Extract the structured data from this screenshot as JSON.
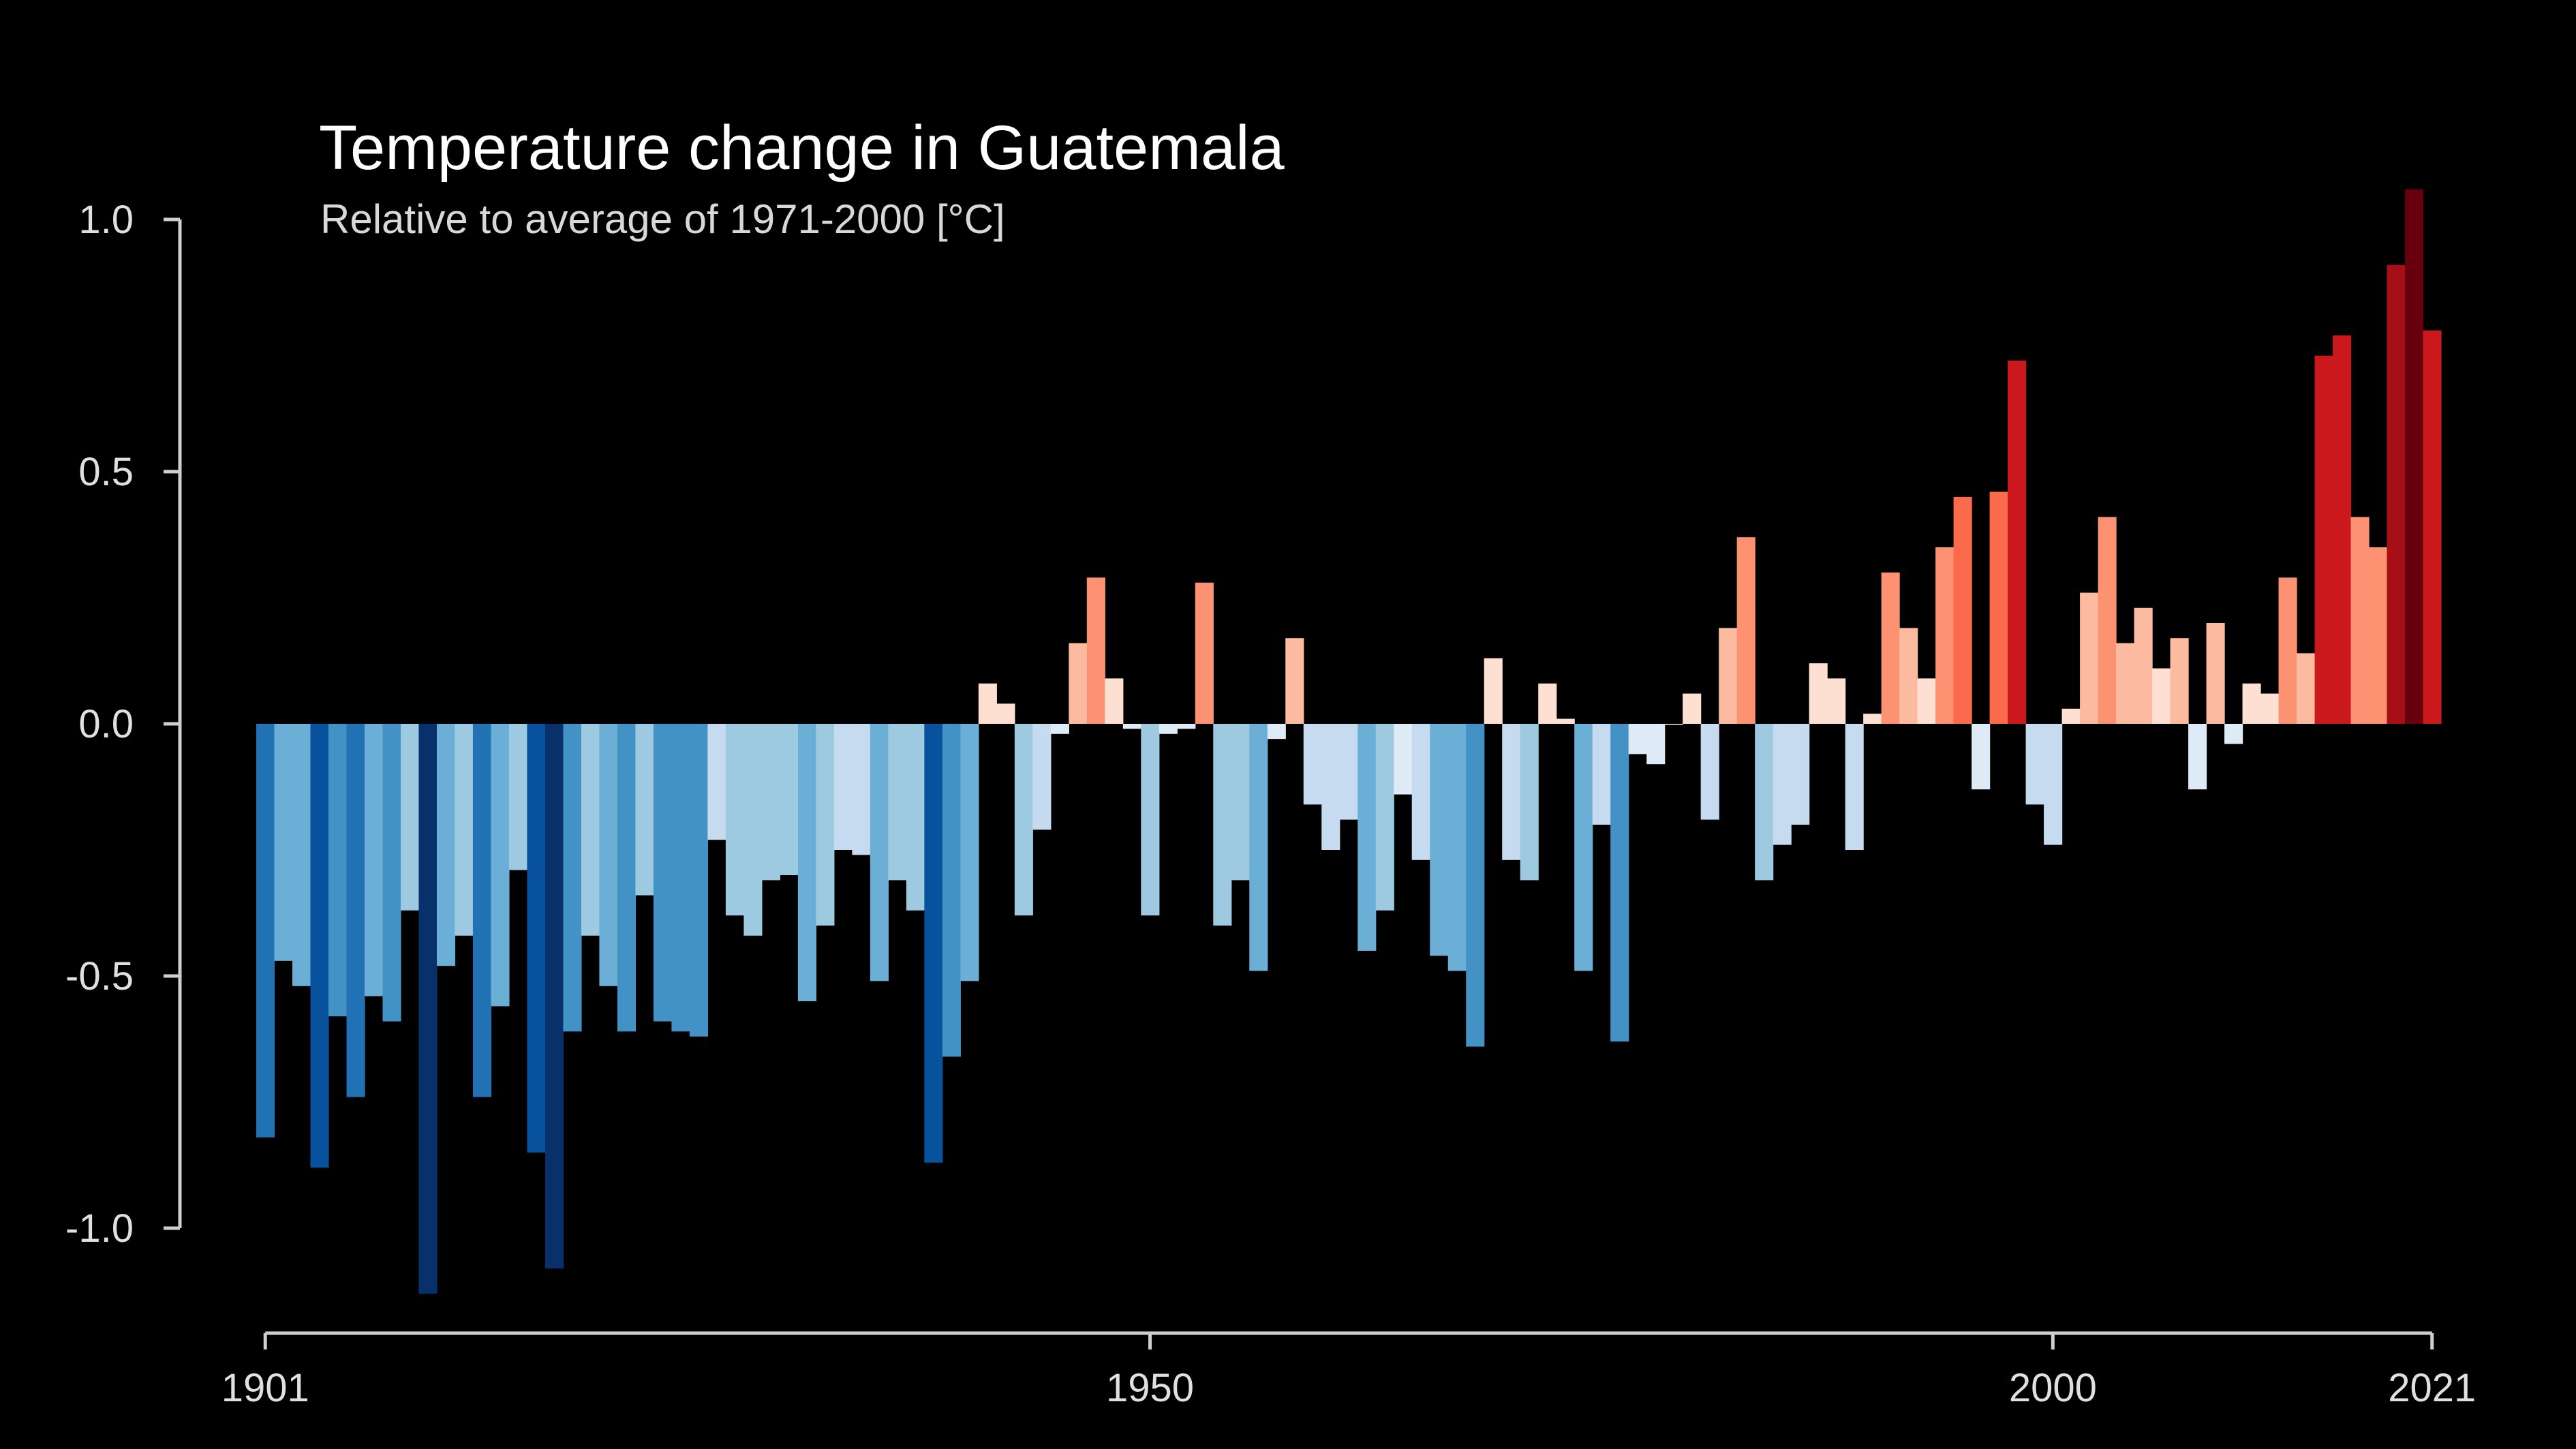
{
  "chart_data": {
    "type": "bar",
    "title": "Temperature change in Guatemala",
    "subtitle": "Relative to average of 1971-2000  [°C]",
    "xlabel": "",
    "ylabel": "",
    "x_start": 1901,
    "x_end": 2021,
    "xlim": [
      1901,
      2021
    ],
    "ylim": [
      -1.15,
      1.1
    ],
    "y_ticks": [
      {
        "value": 1.0,
        "label": "1.0"
      },
      {
        "value": 0.5,
        "label": "0.5"
      },
      {
        "value": 0.0,
        "label": "0.0"
      },
      {
        "value": -0.5,
        "label": "-0.5"
      },
      {
        "value": -1.0,
        "label": "-1.0"
      }
    ],
    "x_ticks": [
      {
        "value": 1901,
        "label": "1901"
      },
      {
        "value": 1950,
        "label": "1950"
      },
      {
        "value": 2000,
        "label": "2000"
      },
      {
        "value": 2021,
        "label": "2021"
      }
    ],
    "grid": false,
    "legend": "none",
    "color_scale": [
      "#08306b",
      "#08519c",
      "#2171b5",
      "#4292c6",
      "#6baed6",
      "#9ecae1",
      "#c6dbef",
      "#deebf7",
      "#fee0d2",
      "#fcbba1",
      "#fc9272",
      "#fb6a4a",
      "#ef3b2c",
      "#cb181d",
      "#a50f15",
      "#67000d"
    ],
    "years": [
      1901,
      1902,
      1903,
      1904,
      1905,
      1906,
      1907,
      1908,
      1909,
      1910,
      1911,
      1912,
      1913,
      1914,
      1915,
      1916,
      1917,
      1918,
      1919,
      1920,
      1921,
      1922,
      1923,
      1924,
      1925,
      1926,
      1927,
      1928,
      1929,
      1930,
      1931,
      1932,
      1933,
      1934,
      1935,
      1936,
      1937,
      1938,
      1939,
      1940,
      1941,
      1942,
      1943,
      1944,
      1945,
      1946,
      1947,
      1948,
      1949,
      1950,
      1951,
      1952,
      1953,
      1954,
      1955,
      1956,
      1957,
      1958,
      1959,
      1960,
      1961,
      1962,
      1963,
      1964,
      1965,
      1966,
      1967,
      1968,
      1969,
      1970,
      1971,
      1972,
      1973,
      1974,
      1975,
      1976,
      1977,
      1978,
      1979,
      1980,
      1981,
      1982,
      1983,
      1984,
      1985,
      1986,
      1987,
      1988,
      1989,
      1990,
      1991,
      1992,
      1993,
      1994,
      1995,
      1996,
      1997,
      1998,
      1999,
      2000,
      2001,
      2002,
      2003,
      2004,
      2005,
      2006,
      2007,
      2008,
      2009,
      2010,
      2011,
      2012,
      2013,
      2014,
      2015,
      2016,
      2017,
      2018,
      2019,
      2020,
      2021
    ],
    "values": [
      -0.82,
      -0.47,
      -0.52,
      -0.88,
      -0.58,
      -0.74,
      -0.54,
      -0.59,
      -0.37,
      -1.13,
      -0.48,
      -0.42,
      -0.74,
      -0.56,
      -0.29,
      -0.85,
      -1.08,
      -0.61,
      -0.42,
      -0.52,
      -0.61,
      -0.34,
      -0.59,
      -0.61,
      -0.62,
      -0.23,
      -0.38,
      -0.42,
      -0.31,
      -0.3,
      -0.55,
      -0.4,
      -0.25,
      -0.26,
      -0.51,
      -0.31,
      -0.37,
      -0.87,
      -0.66,
      -0.51,
      0.08,
      0.04,
      -0.38,
      -0.21,
      -0.02,
      0.16,
      0.29,
      0.09,
      -0.01,
      -0.38,
      -0.02,
      -0.01,
      0.28,
      -0.4,
      -0.31,
      -0.49,
      -0.03,
      0.17,
      -0.16,
      -0.25,
      -0.19,
      -0.45,
      -0.37,
      -0.14,
      -0.27,
      -0.46,
      -0.49,
      -0.64,
      0.13,
      -0.27,
      -0.31,
      0.08,
      0.01,
      -0.49,
      -0.2,
      -0.63,
      -0.06,
      -0.08,
      0.0,
      0.06,
      -0.19,
      0.19,
      0.37,
      -0.31,
      -0.24,
      -0.2,
      0.12,
      0.09,
      -0.25,
      0.02,
      0.3,
      0.19,
      0.09,
      0.35,
      0.45,
      -0.13,
      0.46,
      0.72,
      -0.16,
      -0.24,
      0.03,
      0.26,
      0.41,
      0.16,
      0.23,
      0.11,
      0.17,
      -0.13,
      0.2,
      -0.04,
      0.08,
      0.06,
      0.29,
      0.14,
      0.73,
      0.77,
      0.41,
      0.35,
      0.91,
      1.06,
      0.78
    ]
  }
}
